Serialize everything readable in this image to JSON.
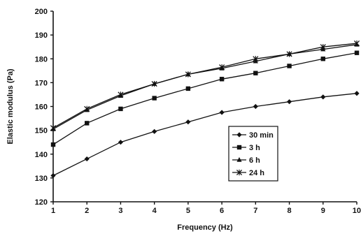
{
  "chart_data": {
    "type": "line",
    "title": "",
    "xlabel": "Frequency (Hz)",
    "ylabel": "Elastic modulus (Pa)",
    "x": [
      1,
      2,
      3,
      4,
      5,
      6,
      7,
      8,
      9,
      10
    ],
    "xlim": [
      1,
      10
    ],
    "ylim": [
      120,
      200
    ],
    "xticks": [
      "1",
      "2",
      "3",
      "4",
      "5",
      "6",
      "7",
      "8",
      "9",
      "10"
    ],
    "yticks": [
      "120",
      "130",
      "140",
      "150",
      "160",
      "170",
      "180",
      "190",
      "200"
    ],
    "grid": false,
    "legend_position": "center-right",
    "series": [
      {
        "name": "30 min",
        "marker": "diamond",
        "values": [
          131,
          138,
          145,
          149.5,
          153.5,
          157.5,
          160,
          162,
          164,
          165.5
        ]
      },
      {
        "name": "3 h",
        "marker": "square",
        "values": [
          144,
          153,
          159,
          163.5,
          167.5,
          171.5,
          174,
          177,
          180,
          182.5
        ]
      },
      {
        "name": "6 h",
        "marker": "triangle",
        "values": [
          150.5,
          158.5,
          164.5,
          169.5,
          173.5,
          176,
          179,
          182,
          184,
          186
        ]
      },
      {
        "name": "24 h",
        "marker": "star",
        "values": [
          151,
          159,
          165,
          169.5,
          173.5,
          176.5,
          180,
          182,
          185,
          186.5
        ]
      }
    ]
  }
}
